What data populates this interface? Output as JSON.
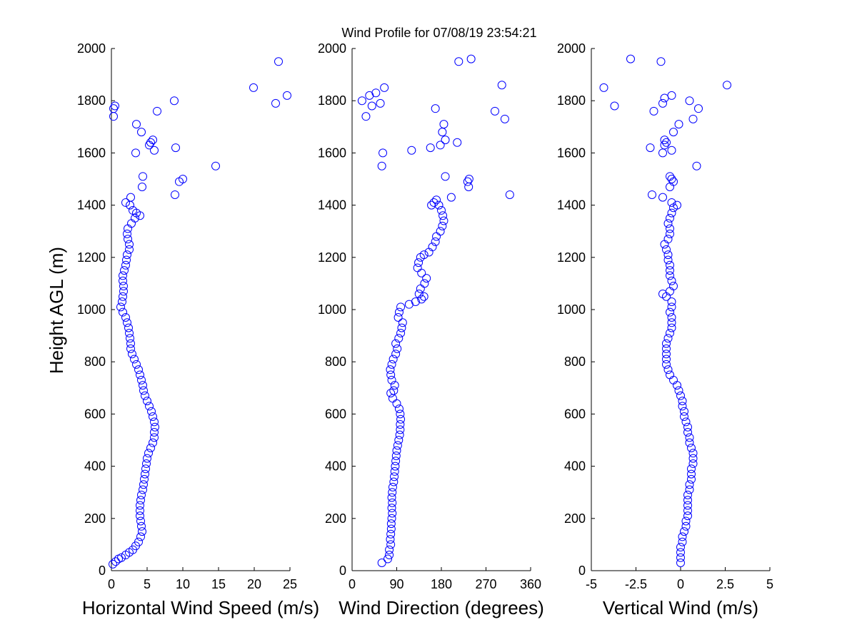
{
  "chart_data": {
    "title": "Wind Profile for  07/08/19 23:54:21",
    "ylabel": "Height AGL (m)",
    "ylim": [
      0,
      2000
    ],
    "yticks": [
      "0",
      "200",
      "400",
      "600",
      "800",
      "1000",
      "1200",
      "1400",
      "1600",
      "1800",
      "2000"
    ],
    "marker_color": "#0000ff",
    "panels": [
      {
        "type": "scatter",
        "xlabel": "Horizontal Wind Speed (m/s)",
        "xlim": [
          0,
          25
        ],
        "xticks": [
          "0",
          "5",
          "10",
          "15",
          "20",
          "25"
        ],
        "points": [
          [
            0.2,
            25
          ],
          [
            0.6,
            35
          ],
          [
            1.0,
            45
          ],
          [
            1.4,
            50
          ],
          [
            2.0,
            60
          ],
          [
            2.5,
            70
          ],
          [
            3.0,
            80
          ],
          [
            3.4,
            95
          ],
          [
            3.8,
            110
          ],
          [
            4.1,
            130
          ],
          [
            4.3,
            150
          ],
          [
            4.2,
            170
          ],
          [
            4.1,
            190
          ],
          [
            4.0,
            210
          ],
          [
            4.0,
            230
          ],
          [
            4.0,
            250
          ],
          [
            4.1,
            270
          ],
          [
            4.2,
            290
          ],
          [
            4.4,
            310
          ],
          [
            4.5,
            330
          ],
          [
            4.6,
            350
          ],
          [
            4.7,
            370
          ],
          [
            4.8,
            390
          ],
          [
            4.9,
            410
          ],
          [
            5.0,
            430
          ],
          [
            5.2,
            450
          ],
          [
            5.5,
            470
          ],
          [
            5.8,
            490
          ],
          [
            6.0,
            510
          ],
          [
            6.0,
            530
          ],
          [
            6.1,
            550
          ],
          [
            6.0,
            570
          ],
          [
            5.8,
            590
          ],
          [
            5.6,
            610
          ],
          [
            5.3,
            630
          ],
          [
            5.0,
            650
          ],
          [
            4.7,
            670
          ],
          [
            4.5,
            690
          ],
          [
            4.4,
            710
          ],
          [
            4.2,
            730
          ],
          [
            4.0,
            750
          ],
          [
            3.8,
            770
          ],
          [
            3.5,
            790
          ],
          [
            3.2,
            810
          ],
          [
            2.9,
            830
          ],
          [
            2.7,
            850
          ],
          [
            2.7,
            870
          ],
          [
            2.6,
            890
          ],
          [
            2.5,
            910
          ],
          [
            2.4,
            930
          ],
          [
            2.2,
            950
          ],
          [
            2.0,
            970
          ],
          [
            1.6,
            990
          ],
          [
            1.3,
            1010
          ],
          [
            1.5,
            1030
          ],
          [
            1.6,
            1050
          ],
          [
            1.7,
            1070
          ],
          [
            1.7,
            1090
          ],
          [
            1.6,
            1110
          ],
          [
            1.6,
            1130
          ],
          [
            1.8,
            1150
          ],
          [
            2.0,
            1170
          ],
          [
            2.1,
            1190
          ],
          [
            2.2,
            1210
          ],
          [
            2.5,
            1230
          ],
          [
            2.5,
            1250
          ],
          [
            2.3,
            1270
          ],
          [
            2.2,
            1290
          ],
          [
            2.3,
            1310
          ],
          [
            2.8,
            1330
          ],
          [
            3.3,
            1350
          ],
          [
            4.0,
            1360
          ],
          [
            3.5,
            1370
          ],
          [
            3.0,
            1380
          ],
          [
            2.6,
            1400
          ],
          [
            2.0,
            1410
          ],
          [
            2.7,
            1430
          ],
          [
            4.3,
            1470
          ],
          [
            4.4,
            1510
          ],
          [
            8.9,
            1440
          ],
          [
            9.5,
            1490
          ],
          [
            10.0,
            1500
          ],
          [
            14.6,
            1550
          ],
          [
            3.4,
            1600
          ],
          [
            6.0,
            1610
          ],
          [
            9.0,
            1620
          ],
          [
            5.3,
            1630
          ],
          [
            5.5,
            1640
          ],
          [
            5.8,
            1650
          ],
          [
            4.2,
            1680
          ],
          [
            3.5,
            1710
          ],
          [
            6.4,
            1760
          ],
          [
            0.3,
            1740
          ],
          [
            0.3,
            1770
          ],
          [
            0.5,
            1780
          ],
          [
            8.8,
            1800
          ],
          [
            23.0,
            1790
          ],
          [
            19.9,
            1850
          ],
          [
            24.6,
            1820
          ],
          [
            23.4,
            1950
          ]
        ]
      },
      {
        "type": "scatter",
        "xlabel": "Wind Direction (degrees)",
        "xlim": [
          0,
          360
        ],
        "xticks": [
          "0",
          "90",
          "180",
          "270",
          "360"
        ],
        "points": [
          [
            60,
            30
          ],
          [
            72,
            45
          ],
          [
            75,
            60
          ],
          [
            75,
            80
          ],
          [
            78,
            100
          ],
          [
            77,
            120
          ],
          [
            78,
            140
          ],
          [
            79,
            160
          ],
          [
            79,
            180
          ],
          [
            80,
            200
          ],
          [
            81,
            220
          ],
          [
            80,
            240
          ],
          [
            81,
            260
          ],
          [
            80,
            280
          ],
          [
            81,
            300
          ],
          [
            82,
            320
          ],
          [
            84,
            340
          ],
          [
            85,
            360
          ],
          [
            86,
            380
          ],
          [
            87,
            400
          ],
          [
            88,
            420
          ],
          [
            89,
            440
          ],
          [
            90,
            460
          ],
          [
            92,
            480
          ],
          [
            94,
            500
          ],
          [
            96,
            520
          ],
          [
            97,
            540
          ],
          [
            97,
            560
          ],
          [
            98,
            580
          ],
          [
            97,
            600
          ],
          [
            95,
            620
          ],
          [
            90,
            640
          ],
          [
            82,
            660
          ],
          [
            78,
            680
          ],
          [
            84,
            690
          ],
          [
            86,
            710
          ],
          [
            80,
            730
          ],
          [
            78,
            750
          ],
          [
            77,
            770
          ],
          [
            80,
            790
          ],
          [
            83,
            810
          ],
          [
            88,
            830
          ],
          [
            91,
            850
          ],
          [
            88,
            870
          ],
          [
            94,
            890
          ],
          [
            98,
            910
          ],
          [
            100,
            930
          ],
          [
            102,
            950
          ],
          [
            93,
            970
          ],
          [
            95,
            990
          ],
          [
            98,
            1010
          ],
          [
            115,
            1020
          ],
          [
            128,
            1030
          ],
          [
            140,
            1040
          ],
          [
            145,
            1050
          ],
          [
            135,
            1060
          ],
          [
            138,
            1080
          ],
          [
            146,
            1100
          ],
          [
            150,
            1120
          ],
          [
            140,
            1140
          ],
          [
            132,
            1160
          ],
          [
            134,
            1180
          ],
          [
            138,
            1200
          ],
          [
            145,
            1210
          ],
          [
            155,
            1220
          ],
          [
            162,
            1240
          ],
          [
            168,
            1260
          ],
          [
            170,
            1280
          ],
          [
            178,
            1300
          ],
          [
            182,
            1320
          ],
          [
            185,
            1340
          ],
          [
            183,
            1360
          ],
          [
            180,
            1380
          ],
          [
            175,
            1400
          ],
          [
            165,
            1410
          ],
          [
            170,
            1420
          ],
          [
            160,
            1400
          ],
          [
            200,
            1430
          ],
          [
            235,
            1470
          ],
          [
            233,
            1490
          ],
          [
            236,
            1500
          ],
          [
            188,
            1510
          ],
          [
            318,
            1440
          ],
          [
            60,
            1550
          ],
          [
            62,
            1600
          ],
          [
            120,
            1610
          ],
          [
            158,
            1620
          ],
          [
            178,
            1630
          ],
          [
            188,
            1650
          ],
          [
            212,
            1640
          ],
          [
            182,
            1680
          ],
          [
            185,
            1710
          ],
          [
            168,
            1770
          ],
          [
            28,
            1740
          ],
          [
            40,
            1780
          ],
          [
            57,
            1790
          ],
          [
            20,
            1800
          ],
          [
            35,
            1820
          ],
          [
            48,
            1830
          ],
          [
            65,
            1850
          ],
          [
            288,
            1760
          ],
          [
            308,
            1730
          ],
          [
            302,
            1860
          ],
          [
            215,
            1950
          ],
          [
            240,
            1960
          ]
        ]
      },
      {
        "type": "scatter",
        "xlabel": "Vertical Wind (m/s)",
        "xlim": [
          -5,
          5
        ],
        "xticks": [
          "-5",
          "-2.5",
          "0",
          "2.5",
          "5"
        ],
        "points": [
          [
            0.0,
            30
          ],
          [
            0.0,
            50
          ],
          [
            0.0,
            70
          ],
          [
            0.0,
            90
          ],
          [
            0.1,
            110
          ],
          [
            0.1,
            130
          ],
          [
            0.2,
            150
          ],
          [
            0.3,
            170
          ],
          [
            0.3,
            190
          ],
          [
            0.4,
            210
          ],
          [
            0.4,
            230
          ],
          [
            0.4,
            250
          ],
          [
            0.4,
            270
          ],
          [
            0.4,
            290
          ],
          [
            0.5,
            310
          ],
          [
            0.5,
            330
          ],
          [
            0.6,
            350
          ],
          [
            0.6,
            370
          ],
          [
            0.6,
            390
          ],
          [
            0.7,
            410
          ],
          [
            0.7,
            430
          ],
          [
            0.7,
            450
          ],
          [
            0.6,
            470
          ],
          [
            0.5,
            490
          ],
          [
            0.5,
            510
          ],
          [
            0.4,
            530
          ],
          [
            0.4,
            550
          ],
          [
            0.3,
            570
          ],
          [
            0.2,
            590
          ],
          [
            0.2,
            610
          ],
          [
            0.1,
            630
          ],
          [
            0.1,
            650
          ],
          [
            0.0,
            670
          ],
          [
            -0.1,
            690
          ],
          [
            -0.2,
            710
          ],
          [
            -0.4,
            730
          ],
          [
            -0.6,
            750
          ],
          [
            -0.7,
            770
          ],
          [
            -0.8,
            790
          ],
          [
            -0.8,
            810
          ],
          [
            -0.8,
            830
          ],
          [
            -0.8,
            850
          ],
          [
            -0.8,
            870
          ],
          [
            -0.7,
            890
          ],
          [
            -0.6,
            910
          ],
          [
            -0.5,
            930
          ],
          [
            -0.5,
            950
          ],
          [
            -0.5,
            970
          ],
          [
            -0.6,
            990
          ],
          [
            -0.5,
            1010
          ],
          [
            -0.5,
            1030
          ],
          [
            -0.8,
            1050
          ],
          [
            -1.0,
            1060
          ],
          [
            -0.6,
            1070
          ],
          [
            -0.4,
            1090
          ],
          [
            -0.5,
            1110
          ],
          [
            -0.6,
            1130
          ],
          [
            -0.6,
            1150
          ],
          [
            -0.6,
            1170
          ],
          [
            -0.7,
            1190
          ],
          [
            -0.7,
            1210
          ],
          [
            -0.8,
            1230
          ],
          [
            -0.9,
            1250
          ],
          [
            -0.7,
            1270
          ],
          [
            -0.6,
            1290
          ],
          [
            -0.6,
            1310
          ],
          [
            -0.7,
            1330
          ],
          [
            -0.6,
            1350
          ],
          [
            -0.5,
            1370
          ],
          [
            -0.4,
            1390
          ],
          [
            -0.2,
            1400
          ],
          [
            -0.5,
            1410
          ],
          [
            -1.0,
            1430
          ],
          [
            -0.6,
            1470
          ],
          [
            -0.5,
            1500
          ],
          [
            -0.6,
            1510
          ],
          [
            -0.4,
            1490
          ],
          [
            -1.6,
            1440
          ],
          [
            0.9,
            1550
          ],
          [
            -1.7,
            1620
          ],
          [
            -0.5,
            1610
          ],
          [
            -0.9,
            1630
          ],
          [
            -0.8,
            1640
          ],
          [
            -0.9,
            1650
          ],
          [
            -1.0,
            1600
          ],
          [
            -0.4,
            1680
          ],
          [
            -0.1,
            1710
          ],
          [
            0.7,
            1730
          ],
          [
            1.0,
            1770
          ],
          [
            0.5,
            1800
          ],
          [
            -1.5,
            1760
          ],
          [
            -3.7,
            1780
          ],
          [
            -4.3,
            1850
          ],
          [
            -1.0,
            1790
          ],
          [
            -0.9,
            1810
          ],
          [
            -0.5,
            1820
          ],
          [
            -1.1,
            1950
          ],
          [
            -2.8,
            1960
          ],
          [
            2.6,
            1860
          ]
        ]
      }
    ]
  }
}
